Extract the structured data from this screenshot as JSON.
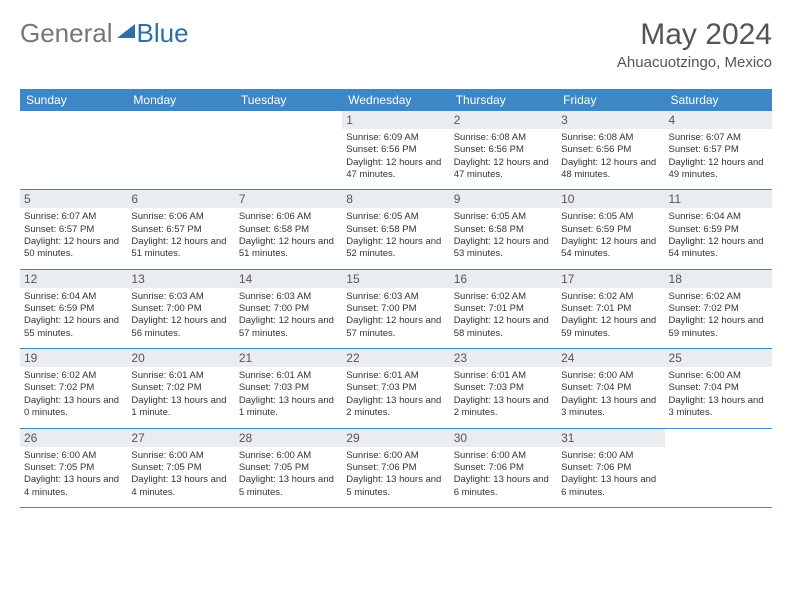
{
  "logo": {
    "part1": "General",
    "part2": "Blue"
  },
  "title": "May 2024",
  "location": "Ahuacuotzingo, Mexico",
  "colors": {
    "header_bg": "#3d87c7",
    "header_text": "#ffffff",
    "daynum_bg": "#e9edf0",
    "row_border": "#3d87c7",
    "logo_gray": "#777777",
    "logo_blue": "#2f6fa8"
  },
  "weekdays": [
    "Sunday",
    "Monday",
    "Tuesday",
    "Wednesday",
    "Thursday",
    "Friday",
    "Saturday"
  ],
  "weeks": [
    [
      {
        "n": "",
        "sr": "",
        "ss": "",
        "dl": ""
      },
      {
        "n": "",
        "sr": "",
        "ss": "",
        "dl": ""
      },
      {
        "n": "",
        "sr": "",
        "ss": "",
        "dl": ""
      },
      {
        "n": "1",
        "sr": "Sunrise: 6:09 AM",
        "ss": "Sunset: 6:56 PM",
        "dl": "Daylight: 12 hours and 47 minutes."
      },
      {
        "n": "2",
        "sr": "Sunrise: 6:08 AM",
        "ss": "Sunset: 6:56 PM",
        "dl": "Daylight: 12 hours and 47 minutes."
      },
      {
        "n": "3",
        "sr": "Sunrise: 6:08 AM",
        "ss": "Sunset: 6:56 PM",
        "dl": "Daylight: 12 hours and 48 minutes."
      },
      {
        "n": "4",
        "sr": "Sunrise: 6:07 AM",
        "ss": "Sunset: 6:57 PM",
        "dl": "Daylight: 12 hours and 49 minutes."
      }
    ],
    [
      {
        "n": "5",
        "sr": "Sunrise: 6:07 AM",
        "ss": "Sunset: 6:57 PM",
        "dl": "Daylight: 12 hours and 50 minutes."
      },
      {
        "n": "6",
        "sr": "Sunrise: 6:06 AM",
        "ss": "Sunset: 6:57 PM",
        "dl": "Daylight: 12 hours and 51 minutes."
      },
      {
        "n": "7",
        "sr": "Sunrise: 6:06 AM",
        "ss": "Sunset: 6:58 PM",
        "dl": "Daylight: 12 hours and 51 minutes."
      },
      {
        "n": "8",
        "sr": "Sunrise: 6:05 AM",
        "ss": "Sunset: 6:58 PM",
        "dl": "Daylight: 12 hours and 52 minutes."
      },
      {
        "n": "9",
        "sr": "Sunrise: 6:05 AM",
        "ss": "Sunset: 6:58 PM",
        "dl": "Daylight: 12 hours and 53 minutes."
      },
      {
        "n": "10",
        "sr": "Sunrise: 6:05 AM",
        "ss": "Sunset: 6:59 PM",
        "dl": "Daylight: 12 hours and 54 minutes."
      },
      {
        "n": "11",
        "sr": "Sunrise: 6:04 AM",
        "ss": "Sunset: 6:59 PM",
        "dl": "Daylight: 12 hours and 54 minutes."
      }
    ],
    [
      {
        "n": "12",
        "sr": "Sunrise: 6:04 AM",
        "ss": "Sunset: 6:59 PM",
        "dl": "Daylight: 12 hours and 55 minutes."
      },
      {
        "n": "13",
        "sr": "Sunrise: 6:03 AM",
        "ss": "Sunset: 7:00 PM",
        "dl": "Daylight: 12 hours and 56 minutes."
      },
      {
        "n": "14",
        "sr": "Sunrise: 6:03 AM",
        "ss": "Sunset: 7:00 PM",
        "dl": "Daylight: 12 hours and 57 minutes."
      },
      {
        "n": "15",
        "sr": "Sunrise: 6:03 AM",
        "ss": "Sunset: 7:00 PM",
        "dl": "Daylight: 12 hours and 57 minutes."
      },
      {
        "n": "16",
        "sr": "Sunrise: 6:02 AM",
        "ss": "Sunset: 7:01 PM",
        "dl": "Daylight: 12 hours and 58 minutes."
      },
      {
        "n": "17",
        "sr": "Sunrise: 6:02 AM",
        "ss": "Sunset: 7:01 PM",
        "dl": "Daylight: 12 hours and 59 minutes."
      },
      {
        "n": "18",
        "sr": "Sunrise: 6:02 AM",
        "ss": "Sunset: 7:02 PM",
        "dl": "Daylight: 12 hours and 59 minutes."
      }
    ],
    [
      {
        "n": "19",
        "sr": "Sunrise: 6:02 AM",
        "ss": "Sunset: 7:02 PM",
        "dl": "Daylight: 13 hours and 0 minutes."
      },
      {
        "n": "20",
        "sr": "Sunrise: 6:01 AM",
        "ss": "Sunset: 7:02 PM",
        "dl": "Daylight: 13 hours and 1 minute."
      },
      {
        "n": "21",
        "sr": "Sunrise: 6:01 AM",
        "ss": "Sunset: 7:03 PM",
        "dl": "Daylight: 13 hours and 1 minute."
      },
      {
        "n": "22",
        "sr": "Sunrise: 6:01 AM",
        "ss": "Sunset: 7:03 PM",
        "dl": "Daylight: 13 hours and 2 minutes."
      },
      {
        "n": "23",
        "sr": "Sunrise: 6:01 AM",
        "ss": "Sunset: 7:03 PM",
        "dl": "Daylight: 13 hours and 2 minutes."
      },
      {
        "n": "24",
        "sr": "Sunrise: 6:00 AM",
        "ss": "Sunset: 7:04 PM",
        "dl": "Daylight: 13 hours and 3 minutes."
      },
      {
        "n": "25",
        "sr": "Sunrise: 6:00 AM",
        "ss": "Sunset: 7:04 PM",
        "dl": "Daylight: 13 hours and 3 minutes."
      }
    ],
    [
      {
        "n": "26",
        "sr": "Sunrise: 6:00 AM",
        "ss": "Sunset: 7:05 PM",
        "dl": "Daylight: 13 hours and 4 minutes."
      },
      {
        "n": "27",
        "sr": "Sunrise: 6:00 AM",
        "ss": "Sunset: 7:05 PM",
        "dl": "Daylight: 13 hours and 4 minutes."
      },
      {
        "n": "28",
        "sr": "Sunrise: 6:00 AM",
        "ss": "Sunset: 7:05 PM",
        "dl": "Daylight: 13 hours and 5 minutes."
      },
      {
        "n": "29",
        "sr": "Sunrise: 6:00 AM",
        "ss": "Sunset: 7:06 PM",
        "dl": "Daylight: 13 hours and 5 minutes."
      },
      {
        "n": "30",
        "sr": "Sunrise: 6:00 AM",
        "ss": "Sunset: 7:06 PM",
        "dl": "Daylight: 13 hours and 6 minutes."
      },
      {
        "n": "31",
        "sr": "Sunrise: 6:00 AM",
        "ss": "Sunset: 7:06 PM",
        "dl": "Daylight: 13 hours and 6 minutes."
      },
      {
        "n": "",
        "sr": "",
        "ss": "",
        "dl": ""
      }
    ]
  ]
}
